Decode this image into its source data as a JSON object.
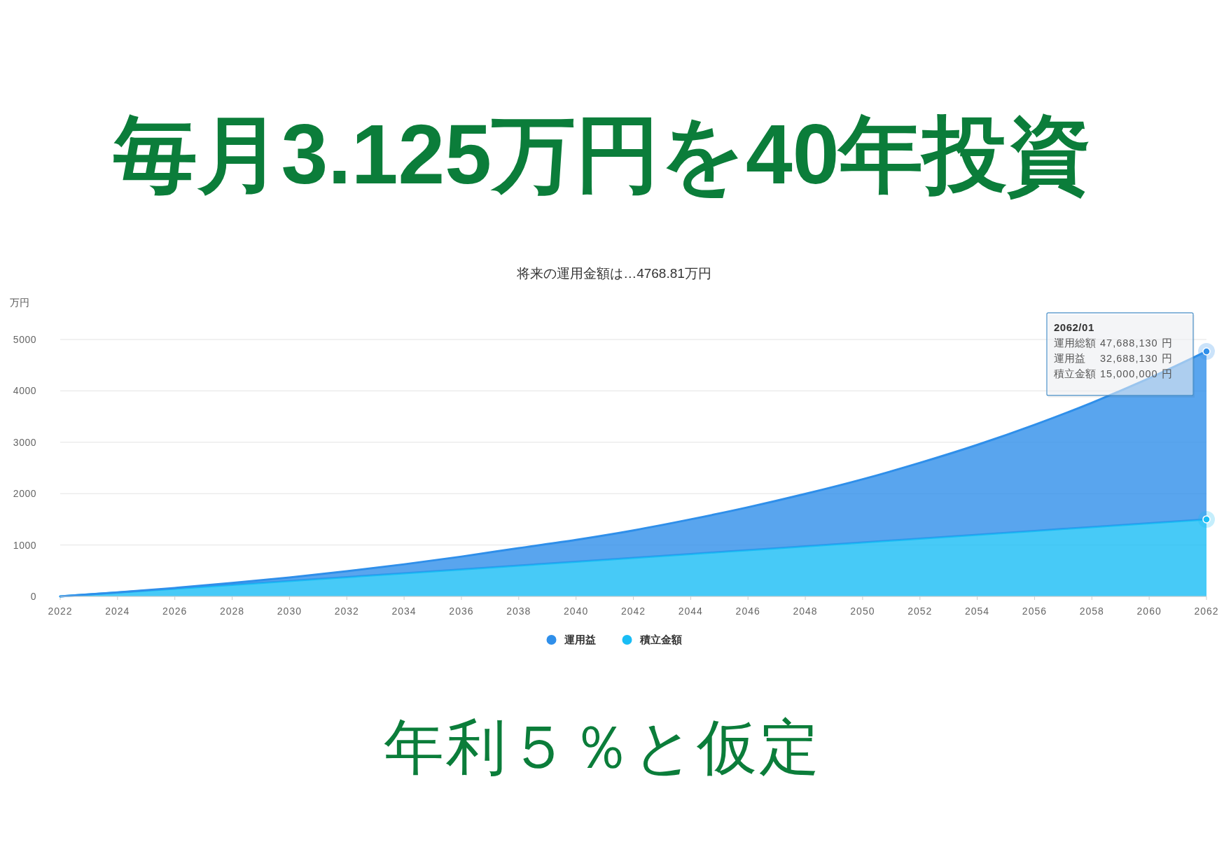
{
  "chart_data": {
    "type": "area",
    "stacked": true,
    "title": "毎月3.125万円を40年投資",
    "subtitle": "将来の運用金額は…4768.81万円",
    "ylabel": "万円",
    "x": [
      2022,
      2024,
      2026,
      2028,
      2030,
      2032,
      2034,
      2036,
      2038,
      2040,
      2042,
      2044,
      2046,
      2048,
      2050,
      2052,
      2054,
      2056,
      2058,
      2060,
      2062
    ],
    "series": [
      {
        "name": "積立金額",
        "color": "#19bdf5",
        "values": [
          0,
          75,
          150,
          225,
          300,
          375,
          450,
          525,
          600,
          675,
          750,
          825,
          900,
          975,
          1050,
          1125,
          1200,
          1275,
          1350,
          1425,
          1500
        ]
      },
      {
        "name": "運用益",
        "color": "#2f8fea",
        "values": [
          0,
          3,
          15,
          37,
          68,
          115,
          175,
          250,
          340,
          425,
          535,
          675,
          835,
          1020,
          1230,
          1475,
          1750,
          2065,
          2420,
          2820,
          3268.813
        ]
      }
    ],
    "xlim": [
      2022,
      2062
    ],
    "xticks": [
      2022,
      2024,
      2026,
      2028,
      2030,
      2032,
      2034,
      2036,
      2038,
      2040,
      2042,
      2044,
      2046,
      2048,
      2050,
      2052,
      2054,
      2056,
      2058,
      2060,
      2062
    ],
    "ylim": [
      0,
      5000
    ],
    "yticks": [
      0,
      1000,
      2000,
      3000,
      4000,
      5000
    ],
    "grid": "y",
    "legend": "bottom",
    "annotations": [
      "2062/01",
      "運用総額 47,688,130 円",
      "運用益 32,688,130 円",
      "積立金額 15,000,000 円",
      "年利５％と仮定"
    ]
  }
}
